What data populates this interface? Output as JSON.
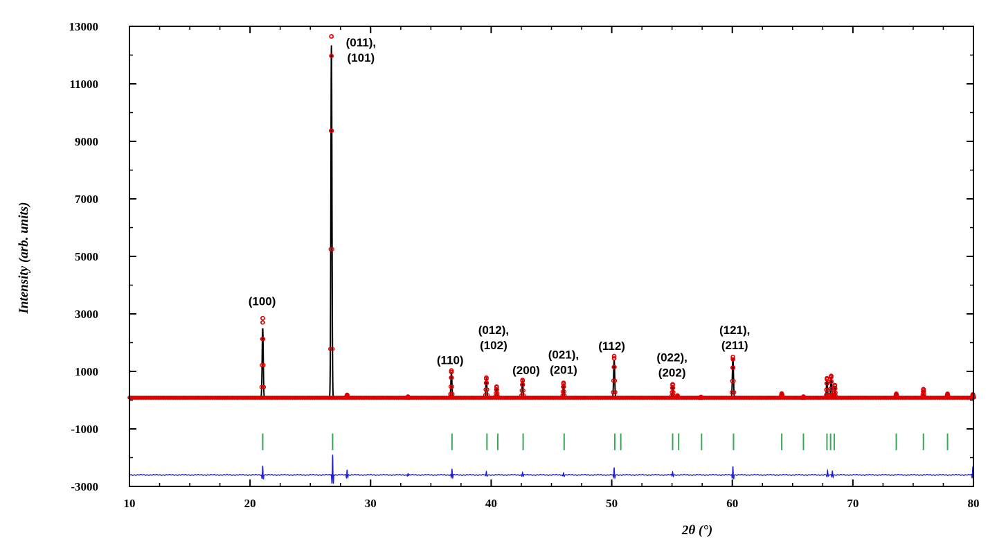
{
  "chart_data": {
    "type": "scatter",
    "title": "",
    "xlabel": "2θ (°)",
    "ylabel": "Intensity (arb. units)",
    "xlim": [
      10,
      80
    ],
    "ylim": [
      -3000,
      13000
    ],
    "x_ticks": [
      "10",
      "20",
      "30",
      "40",
      "50",
      "60",
      "70",
      "80"
    ],
    "y_ticks": [
      "-3000",
      "-1000",
      "1000",
      "3000",
      "5000",
      "7000",
      "9000",
      "11000",
      "13000"
    ],
    "grid": false,
    "legend": "none",
    "colors": {
      "observed": "#e00000",
      "calculated": "#000000",
      "bragg": "#3aa655",
      "difference": "#1f1fd6"
    },
    "background": 80,
    "peaks": [
      {
        "x": 21.05,
        "obs": 2850,
        "calc": 2500
      },
      {
        "x": 26.75,
        "obs": 12650,
        "calc": 12350
      },
      {
        "x": 28.05,
        "obs": 180,
        "calc": 90
      },
      {
        "x": 33.1,
        "obs": 120,
        "calc": 100
      },
      {
        "x": 36.7,
        "obs": 1030,
        "calc": 950
      },
      {
        "x": 39.6,
        "obs": 780,
        "calc": 720
      },
      {
        "x": 40.45,
        "obs": 470,
        "calc": 430
      },
      {
        "x": 42.6,
        "obs": 700,
        "calc": 640
      },
      {
        "x": 46.0,
        "obs": 600,
        "calc": 550
      },
      {
        "x": 50.2,
        "obs": 1530,
        "calc": 1400
      },
      {
        "x": 55.05,
        "obs": 550,
        "calc": 500
      },
      {
        "x": 55.45,
        "obs": 160,
        "calc": 140
      },
      {
        "x": 57.4,
        "obs": 110,
        "calc": 100
      },
      {
        "x": 60.05,
        "obs": 1500,
        "calc": 1450
      },
      {
        "x": 64.1,
        "obs": 230,
        "calc": 210
      },
      {
        "x": 65.9,
        "obs": 120,
        "calc": 110
      },
      {
        "x": 67.85,
        "obs": 760,
        "calc": 700
      },
      {
        "x": 68.2,
        "obs": 840,
        "calc": 780
      },
      {
        "x": 68.5,
        "obs": 520,
        "calc": 480
      },
      {
        "x": 73.6,
        "obs": 220,
        "calc": 200
      },
      {
        "x": 75.85,
        "obs": 380,
        "calc": 350
      },
      {
        "x": 77.85,
        "obs": 220,
        "calc": 200
      },
      {
        "x": 79.95,
        "obs": 200,
        "calc": 180
      }
    ],
    "bragg_positions": [
      21.05,
      26.85,
      36.75,
      39.65,
      40.55,
      42.65,
      46.05,
      50.25,
      50.75,
      55.05,
      55.55,
      57.45,
      60.1,
      64.1,
      65.9,
      67.85,
      68.15,
      68.45,
      73.6,
      75.85,
      77.85
    ],
    "bragg_y": -1450,
    "difference": {
      "baseline": -2600,
      "features": [
        {
          "x": 21.05,
          "dy": 320
        },
        {
          "x": 26.85,
          "dy": 700
        },
        {
          "x": 28.05,
          "dy": 200
        },
        {
          "x": 33.1,
          "dy": 60
        },
        {
          "x": 36.75,
          "dy": 220
        },
        {
          "x": 39.6,
          "dy": 100
        },
        {
          "x": 42.6,
          "dy": 100
        },
        {
          "x": 46.0,
          "dy": 80
        },
        {
          "x": 50.2,
          "dy": 240
        },
        {
          "x": 55.05,
          "dy": 110
        },
        {
          "x": 60.05,
          "dy": 300
        },
        {
          "x": 67.9,
          "dy": 140
        },
        {
          "x": 68.3,
          "dy": 160
        },
        {
          "x": 79.95,
          "dy": 300
        }
      ]
    },
    "annotations": [
      {
        "lines": [
          "(100)"
        ],
        "x": 21.0,
        "y": 3300
      },
      {
        "lines": [
          "(011),",
          "(101)"
        ],
        "x": 29.2,
        "y": 12300
      },
      {
        "lines": [
          "(110)"
        ],
        "x": 36.6,
        "y": 1250
      },
      {
        "lines": [
          "(012),",
          "(102)"
        ],
        "x": 40.2,
        "y": 2300
      },
      {
        "lines": [
          "(200)"
        ],
        "x": 42.9,
        "y": 900
      },
      {
        "lines": [
          "(021),",
          "(201)"
        ],
        "x": 46.0,
        "y": 1450
      },
      {
        "lines": [
          "(112)"
        ],
        "x": 50.0,
        "y": 1750
      },
      {
        "lines": [
          "(022),",
          "(202)"
        ],
        "x": 55.0,
        "y": 1350
      },
      {
        "lines": [
          "(121),",
          "(211)"
        ],
        "x": 60.2,
        "y": 2300
      }
    ]
  }
}
